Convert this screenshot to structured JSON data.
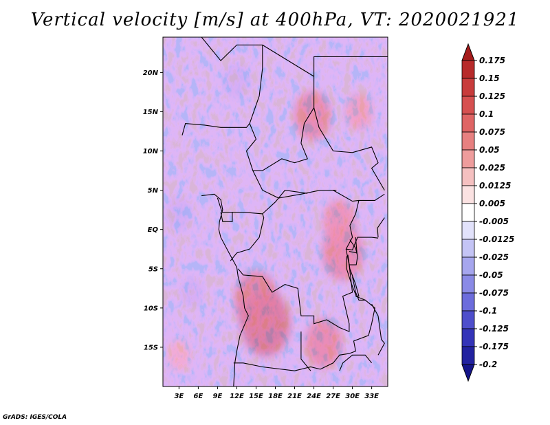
{
  "chart_data": {
    "type": "heatmap",
    "title": "Vertical velocity [m/s] at 400hPa, VT: 2020021921",
    "xlabel": "",
    "ylabel": "",
    "xlim": [
      0.5,
      35.5
    ],
    "ylim": [
      -20,
      24.5
    ],
    "x_ticks": [
      {
        "value": 3,
        "label": "3E"
      },
      {
        "value": 6,
        "label": "6E"
      },
      {
        "value": 9,
        "label": "9E"
      },
      {
        "value": 12,
        "label": "12E"
      },
      {
        "value": 15,
        "label": "15E"
      },
      {
        "value": 18,
        "label": "18E"
      },
      {
        "value": 21,
        "label": "21E"
      },
      {
        "value": 24,
        "label": "24E"
      },
      {
        "value": 27,
        "label": "27E"
      },
      {
        "value": 30,
        "label": "30E"
      },
      {
        "value": 33,
        "label": "33E"
      }
    ],
    "y_ticks": [
      {
        "value": 20,
        "label": "20N"
      },
      {
        "value": 15,
        "label": "15N"
      },
      {
        "value": 10,
        "label": "10N"
      },
      {
        "value": 5,
        "label": "5N"
      },
      {
        "value": 0,
        "label": "EQ"
      },
      {
        "value": -5,
        "label": "5S"
      },
      {
        "value": -10,
        "label": "10S"
      },
      {
        "value": -15,
        "label": "15S"
      }
    ],
    "colorbar": {
      "labels": [
        "0.175",
        "0.15",
        "0.125",
        "0.1",
        "0.075",
        "0.05",
        "0.025",
        "0.0125",
        "0.005",
        "-0.005",
        "-0.0125",
        "-0.025",
        "-0.05",
        "-0.075",
        "-0.1",
        "-0.125",
        "-0.175",
        "-0.2"
      ],
      "colors": [
        "#a51b1b",
        "#b72a2a",
        "#c83c3c",
        "#d65050",
        "#df6464",
        "#e78080",
        "#ee9c9c",
        "#f5c0c0",
        "#fbe2e2",
        "#ffffff",
        "#e2e2fb",
        "#c4c4f5",
        "#a6a6ee",
        "#8a8ae6",
        "#6c6cdc",
        "#4e4ecc",
        "#3434b8",
        "#2222a0",
        "#15158a"
      ],
      "ticks": [
        0.175,
        0.15,
        0.125,
        0.1,
        0.075,
        0.05,
        0.025,
        0.0125,
        0.005,
        -0.005,
        -0.0125,
        -0.025,
        -0.05,
        -0.075,
        -0.1,
        -0.125,
        -0.175,
        -0.2
      ]
    },
    "features": [
      {
        "name": "strong ascent Angola highlands",
        "lon": 16.5,
        "lat": -12.0,
        "value": 0.16
      },
      {
        "name": "ascent Angola north",
        "lon": 15.0,
        "lat": -9.0,
        "value": 0.13
      },
      {
        "name": "ascent Great Lakes",
        "lon": 28.5,
        "lat": -3.0,
        "value": 0.12
      },
      {
        "name": "ascent east Congo",
        "lon": 28.0,
        "lat": 1.0,
        "value": 0.08
      },
      {
        "name": "ascent Zambia",
        "lon": 25.5,
        "lat": -14.5,
        "value": 0.1
      },
      {
        "name": "ascent Darfur",
        "lon": 23.8,
        "lat": 14.5,
        "value": 0.1
      },
      {
        "name": "ascent Sudan east",
        "lon": 31.0,
        "lat": 15.0,
        "value": 0.05
      },
      {
        "name": "ascent southeast Atlantic",
        "lon": 3.0,
        "lat": -16.0,
        "value": 0.03
      },
      {
        "name": "subsidence Gulf of Guinea",
        "lon": 3.0,
        "lat": 2.0,
        "value": -0.05
      },
      {
        "name": "subsidence Sahara",
        "lon": 12.0,
        "lat": 19.0,
        "value": -0.05
      },
      {
        "name": "subsidence Atlantic south",
        "lon": 5.0,
        "lat": -8.0,
        "value": -0.03
      }
    ]
  },
  "footer": "GrADS: IGES/COLA"
}
